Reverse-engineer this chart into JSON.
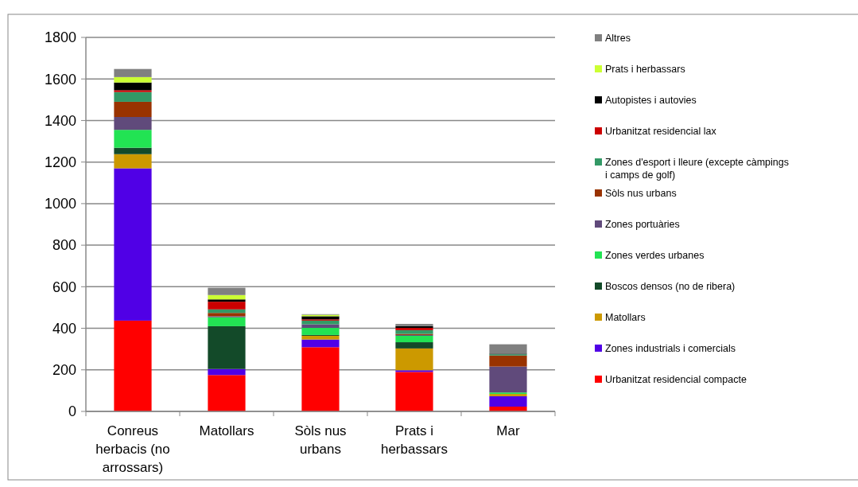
{
  "chart_data": {
    "type": "bar",
    "stacked": true,
    "categories": [
      "Conreus herbacis (no arrossars)",
      "Matollars",
      "Sòls nus urbans",
      "Prats i herbassars",
      "Mar"
    ],
    "ylim": [
      0,
      1800
    ],
    "yticks": [
      0,
      200,
      400,
      600,
      800,
      1000,
      1200,
      1400,
      1600,
      1800
    ],
    "grid": "y",
    "legend": "right",
    "series": [
      {
        "name": "Urbanitzat residencial compacte",
        "color": "#ff0000",
        "values": [
          437,
          175,
          309,
          190,
          23
        ]
      },
      {
        "name": "Zones industrials i comercials",
        "color": "#5000e6",
        "values": [
          733,
          29,
          37,
          8,
          50
        ]
      },
      {
        "name": "Matollars",
        "color": "#cc9900",
        "values": [
          68,
          0,
          18,
          105,
          11
        ]
      },
      {
        "name": "Boscos densos (no de ribera)",
        "color": "#134a29",
        "values": [
          31,
          206,
          4,
          30,
          0
        ]
      },
      {
        "name": "Zones verdes urbanes",
        "color": "#22e353",
        "values": [
          86,
          43,
          34,
          31,
          7
        ]
      },
      {
        "name": "Zones portuàries",
        "color": "#604a7b",
        "values": [
          62,
          5,
          17,
          4,
          125
        ]
      },
      {
        "name": "Sòls nus urbans",
        "color": "#993300",
        "values": [
          73,
          16,
          0,
          5,
          53
        ]
      },
      {
        "name": "Zones d'esport i lleure (excepte càmpings i camps de golf)",
        "color": "#339966",
        "values": [
          47,
          17,
          18,
          18,
          6
        ]
      },
      {
        "name": "Urbanitzat residencial lax",
        "color": "#cc0000",
        "values": [
          9,
          37,
          6,
          11,
          0
        ]
      },
      {
        "name": "Autopistes i autovies",
        "color": "#000000",
        "values": [
          37,
          11,
          15,
          9,
          3
        ]
      },
      {
        "name": "Prats i herbassars",
        "color": "#ccff33",
        "values": [
          26,
          21,
          7,
          0,
          0
        ]
      },
      {
        "name": "Altres",
        "color": "#808080",
        "values": [
          39,
          35,
          3,
          10,
          45
        ]
      }
    ]
  }
}
